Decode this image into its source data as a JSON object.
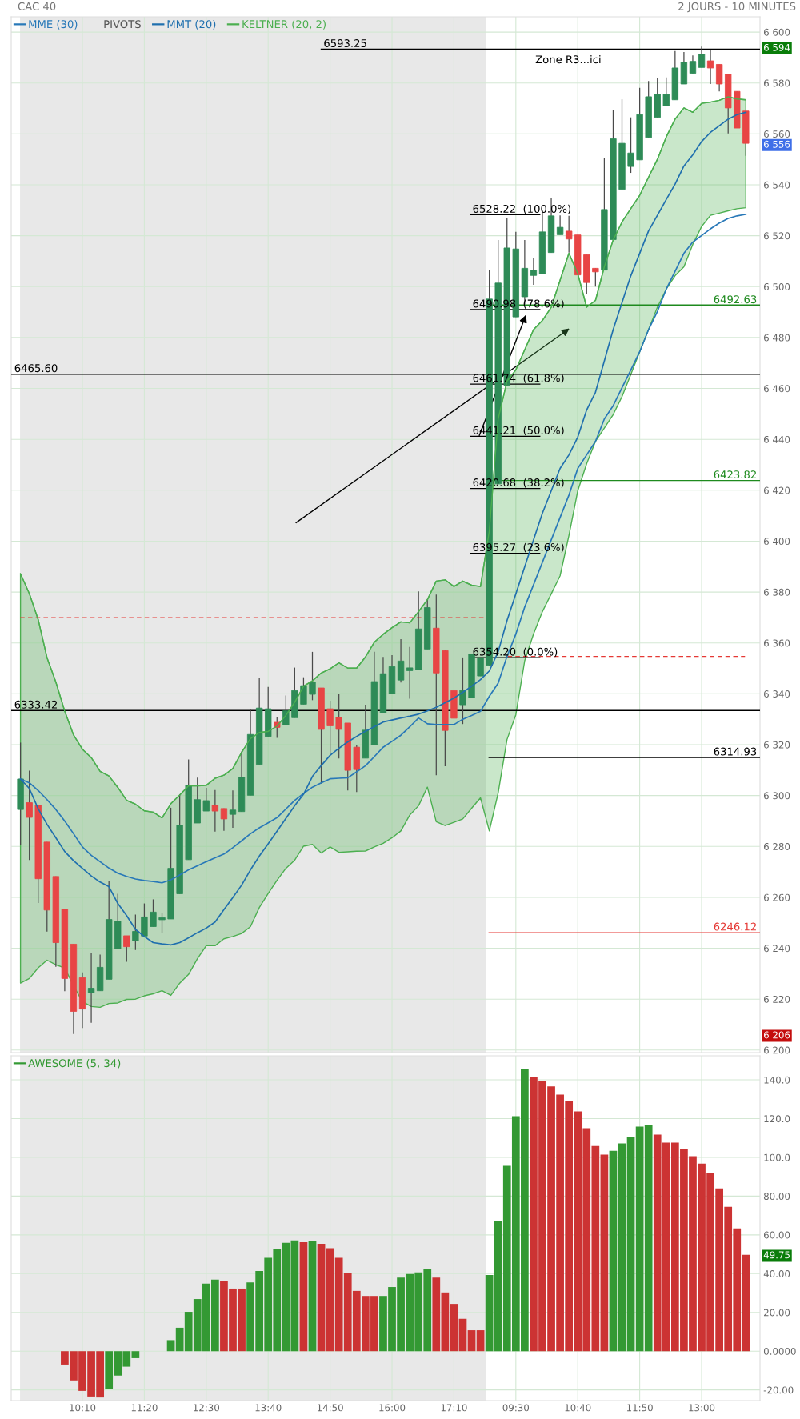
{
  "chart_data": [
    {
      "type": "candlestick",
      "title": "CAC 40",
      "subtitle": "2 JOURS - 10 MINUTES",
      "categories": [
        null,
        null,
        null,
        null,
        null,
        null,
        null,
        null,
        null,
        null,
        null,
        null,
        null,
        null,
        null,
        null,
        null,
        null,
        null,
        null,
        null,
        null,
        null,
        null,
        null,
        null,
        null,
        null,
        null,
        null,
        null,
        null,
        null,
        null,
        null,
        null,
        null,
        null,
        null,
        null,
        null,
        null,
        null,
        null,
        null,
        null,
        null,
        null,
        null,
        null,
        null,
        null,
        null,
        null,
        null,
        null,
        null,
        null,
        null,
        null,
        null,
        null,
        null,
        null,
        null,
        null,
        null,
        null,
        null,
        null,
        null,
        null,
        null,
        null,
        null,
        null,
        null,
        null,
        null,
        null,
        null,
        null,
        null
      ],
      "series": [
        {
          "type": "candlestick",
          "ohlc": [
            [
              6294.5,
              6320.8,
              6280.7,
              6306.5
            ],
            [
              6297.2,
              6309.8,
              6274.7,
              6291.4
            ],
            [
              6296.1,
              6296.1,
              6257.8,
              6267.3
            ],
            [
              6281.7,
              6281.7,
              6246.5,
              6255.0
            ],
            [
              6268.2,
              6268.2,
              6232.7,
              6242.2
            ],
            [
              6255.4,
              6255.4,
              6223.1,
              6228.1
            ],
            [
              6241.6,
              6241.6,
              6206.3,
              6215.2
            ],
            [
              6228.4,
              6230.5,
              6208.7,
              6216.1
            ],
            [
              6222.5,
              6238.3,
              6210.7,
              6224.3
            ],
            [
              6223.3,
              6237.5,
              6223.3,
              6232.5
            ],
            [
              6227.8,
              6266.3,
              6227.8,
              6251.3
            ],
            [
              6239.8,
              6261.4,
              6239.8,
              6250.7
            ],
            [
              6244.9,
              6244.9,
              6234.7,
              6240.6
            ],
            [
              6242.9,
              6253.2,
              6239.3,
              6246.6
            ],
            [
              6244.8,
              6257.6,
              6244.8,
              6252.3
            ],
            [
              6248.5,
              6259.2,
              6248.5,
              6254.2
            ],
            [
              6251.2,
              6253.9,
              6245.9,
              6252.0
            ],
            [
              6251.5,
              6295.2,
              6251.5,
              6271.4
            ],
            [
              6261.4,
              6300.4,
              6261.4,
              6288.4
            ],
            [
              6274.8,
              6314.2,
              6274.8,
              6304.0
            ],
            [
              6289.2,
              6307.0,
              6289.2,
              6298.4
            ],
            [
              6293.9,
              6303.0,
              6293.9,
              6298.0
            ],
            [
              6296.2,
              6302.2,
              6285.8,
              6293.9
            ],
            [
              6294.9,
              6294.9,
              6286.1,
              6290.8
            ],
            [
              6292.6,
              6302.0,
              6287.3,
              6294.3
            ],
            [
              6293.7,
              6317.3,
              6293.7,
              6307.2
            ],
            [
              6300.1,
              6333.9,
              6300.1,
              6324.0
            ],
            [
              6312.2,
              6346.4,
              6312.2,
              6334.4
            ],
            [
              6323.2,
              6342.7,
              6323.2,
              6334.1
            ],
            [
              6328.8,
              6331.0,
              6322.7,
              6326.8
            ],
            [
              6327.8,
              6339.3,
              6327.8,
              6333.3
            ],
            [
              6330.6,
              6350.3,
              6330.6,
              6341.3
            ],
            [
              6335.9,
              6346.5,
              6335.9,
              6343.2
            ],
            [
              6339.8,
              6356.5,
              6337.5,
              6344.5
            ],
            [
              6342.3,
              6342.3,
              6304.7,
              6326.0
            ],
            [
              6334.1,
              6337.3,
              6316.1,
              6327.4
            ],
            [
              6330.7,
              6340.1,
              6314.6,
              6326.0
            ],
            [
              6328.5,
              6328.5,
              6302.0,
              6309.9
            ],
            [
              6319.0,
              6320.0,
              6301.4,
              6310.2
            ],
            [
              6314.7,
              6335.7,
              6314.7,
              6325.7
            ],
            [
              6320.0,
              6356.5,
              6320.0,
              6344.8
            ],
            [
              6332.5,
              6354.5,
              6332.5,
              6347.9
            ],
            [
              6340.1,
              6355.2,
              6340.1,
              6350.7
            ],
            [
              6345.4,
              6361.5,
              6344.4,
              6352.9
            ],
            [
              6349.1,
              6358.4,
              6338.1,
              6350.2
            ],
            [
              6349.5,
              6380.3,
              6349.5,
              6365.5
            ],
            [
              6357.6,
              6377.2,
              6357.6,
              6373.9
            ],
            [
              6365.8,
              6379.0,
              6308.0,
              6348.2
            ],
            [
              6357.0,
              6357.0,
              6311.5,
              6325.6
            ],
            [
              6341.3,
              6341.3,
              6330.4,
              6330.4
            ],
            [
              6335.7,
              6354.3,
              6328.1,
              6341.3
            ],
            [
              6338.5,
              6355.6,
              6338.5,
              6355.6
            ],
            [
              6347.0,
              6354.2,
              6347.0,
              6354.2
            ],
            [
              6351.2,
              6506.7,
              6351.2,
              6495.1
            ],
            [
              6422.5,
              6518.3,
              6422.5,
              6501.4
            ],
            [
              6461.2,
              6526.8,
              6461.2,
              6515.2
            ],
            [
              6488.1,
              6521.5,
              6488.1,
              6514.8
            ],
            [
              6496.0,
              6518.3,
              6493.0,
              6507.2
            ],
            [
              6504.4,
              6511.3,
              6500.7,
              6506.5
            ],
            [
              6505.1,
              6530.1,
              6505.1,
              6521.5
            ],
            [
              6513.4,
              6534.9,
              6513.4,
              6527.8
            ],
            [
              6520.4,
              6528.0,
              6520.4,
              6523.3
            ],
            [
              6521.8,
              6527.8,
              6513.4,
              6518.7
            ],
            [
              6520.3,
              6520.3,
              6504.6,
              6504.6
            ],
            [
              6512.5,
              6512.5,
              6497.1,
              6501.6
            ],
            [
              6507.2,
              6507.2,
              6500.0,
              6505.8
            ],
            [
              6506.5,
              6550.4,
              6506.5,
              6530.3
            ],
            [
              6518.5,
              6569.4,
              6518.5,
              6558.1
            ],
            [
              6538.2,
              6573.6,
              6538.2,
              6556.3
            ],
            [
              6547.2,
              6566.5,
              6544.7,
              6552.5
            ],
            [
              6549.8,
              6578.1,
              6549.8,
              6567.6
            ],
            [
              6558.6,
              6580.8,
              6558.6,
              6574.6
            ],
            [
              6566.5,
              6582.0,
              6566.5,
              6575.5
            ],
            [
              6571.1,
              6582.2,
              6571.1,
              6575.5
            ],
            [
              6573.4,
              6592.6,
              6573.4,
              6585.9
            ],
            [
              6579.6,
              6592.2,
              6579.6,
              6588.2
            ],
            [
              6583.8,
              6590.8,
              6583.8,
              6588.5
            ],
            [
              6586.1,
              6594.3,
              6586.1,
              6591.3
            ],
            [
              6588.7,
              6592.9,
              6579.6,
              6585.9
            ],
            [
              6587.3,
              6587.3,
              6576.7,
              6579.6
            ],
            [
              6583.4,
              6583.4,
              6560.2,
              6570.2
            ],
            [
              6576.7,
              6576.7,
              6562.3,
              6562.3
            ],
            [
              6569.0,
              6569.0,
              6551.4,
              6556.3
            ]
          ],
          "colors": [
            "#2e8b57",
            "#e84545",
            "#e84545",
            "#e84545",
            "#e84545",
            "#e84545",
            "#e84545",
            "#e84545",
            "#2e8b57",
            "#2e8b57",
            "#2e8b57",
            "#2e8b57",
            "#e84545",
            "#2e8b57",
            "#2e8b57",
            "#2e8b57",
            "#2e8b57",
            "#2e8b57",
            "#2e8b57",
            "#2e8b57",
            "#2e8b57",
            "#2e8b57",
            "#e84545",
            "#e84545",
            "#2e8b57",
            "#2e8b57",
            "#2e8b57",
            "#2e8b57",
            "#2e8b57",
            "#e84545",
            "#2e8b57",
            "#2e8b57",
            "#2e8b57",
            "#2e8b57",
            "#e84545",
            "#e84545",
            "#e84545",
            "#e84545",
            "#e84545",
            "#2e8b57",
            "#2e8b57",
            "#2e8b57",
            "#2e8b57",
            "#2e8b57",
            "#2e8b57",
            "#2e8b57",
            "#2e8b57",
            "#e84545",
            "#e84545",
            "#e84545",
            "#2e8b57",
            "#2e8b57",
            "#2e8b57",
            "#2e8b57",
            "#2e8b57",
            "#2e8b57",
            "#2e8b57",
            "#2e8b57",
            "#2e8b57",
            "#2e8b57",
            "#2e8b57",
            "#2e8b57",
            "#e84545",
            "#e84545",
            "#e84545",
            "#e84545",
            "#2e8b57",
            "#2e8b57",
            "#2e8b57",
            "#2e8b57",
            "#2e8b57",
            "#2e8b57",
            "#2e8b57",
            "#2e8b57",
            "#2e8b57",
            "#2e8b57",
            "#2e8b57",
            "#2e8b57",
            "#e84545",
            "#e84545",
            "#e84545",
            "#e84545",
            "#e84545"
          ]
        },
        {
          "name": "MME (30)",
          "type": "line",
          "color": "#2878b8",
          "values": [
            6306.5,
            6305.0,
            6302.0,
            6298.4,
            6294.5,
            6290.0,
            6285.0,
            6279.8,
            6276.5,
            6274.0,
            6271.5,
            6269.5,
            6268.2,
            6267.2,
            6266.6,
            6266.2,
            6265.7,
            6266.9,
            6268.8,
            6270.8,
            6272.4,
            6274.0,
            6275.5,
            6277.0,
            6279.5,
            6282.2,
            6285.0,
            6287.3,
            6289.3,
            6291.3,
            6294.7,
            6298.1,
            6300.8,
            6303.3,
            6305.0,
            6306.6,
            6306.8,
            6307.0,
            6309.3,
            6311.7,
            6315.3,
            6319.0,
            6321.3,
            6323.7,
            6327.0,
            6330.5,
            6328.2,
            6327.9,
            6327.9,
            6327.9,
            6330.0,
            6331.5,
            6333.1,
            6339.0,
            6344.2,
            6354.7,
            6363.5,
            6374.1,
            6382.9,
            6391.7,
            6400.5,
            6409.3,
            6418.1,
            6428.6,
            6433.9,
            6439.2,
            6448.0,
            6453.2,
            6460.3,
            6467.3,
            6474.4,
            6483.1,
            6490.2,
            6499.0,
            6506.0,
            6513.1,
            6517.5,
            6520.1,
            6522.7,
            6525.0,
            6526.8,
            6527.8,
            6528.4
          ]
        },
        {
          "name": "MMT (20)",
          "type": "line",
          "color": "#1f6fae",
          "values": [
            6306.5,
            6302.8,
            6294.8,
            6288.7,
            6283.4,
            6278.0,
            6274.4,
            6271.4,
            6268.4,
            6266.0,
            6264.2,
            6257.6,
            6252.8,
            6247.4,
            6244.6,
            6242.2,
            6241.7,
            6241.3,
            6242.2,
            6244.1,
            6246.1,
            6247.9,
            6250.3,
            6255.2,
            6259.9,
            6264.8,
            6270.8,
            6276.2,
            6281.0,
            6286.0,
            6291.0,
            6296.0,
            6300.5,
            6307.5,
            6311.8,
            6315.8,
            6318.6,
            6321.1,
            6323.2,
            6325.3,
            6327.1,
            6328.9,
            6329.7,
            6330.5,
            6331.2,
            6332.0,
            6333.3,
            6334.7,
            6336.5,
            6338.3,
            6340.6,
            6343.0,
            6345.6,
            6349.0,
            6356.5,
            6368.8,
            6379.3,
            6389.9,
            6400.5,
            6411.0,
            6419.8,
            6428.6,
            6433.9,
            6440.9,
            6451.5,
            6458.5,
            6470.8,
            6483.1,
            6493.7,
            6504.3,
            6513.1,
            6521.9,
            6528.0,
            6534.2,
            6540.3,
            6547.4,
            6551.8,
            6557.0,
            6560.6,
            6563.2,
            6565.8,
            6567.6,
            6568.5
          ]
        },
        {
          "name": "KELTNER (20, 2)",
          "type": "line",
          "color": "#4caf50",
          "values": [
            6387.2,
            6379.4,
            6369.2,
            6354.2,
            6344.6,
            6333.2,
            6323.8,
            6318.2,
            6314.9,
            6309.5,
            6307.7,
            6303.2,
            6298.1,
            6296.6,
            6294.0,
            6293.5,
            6291.2,
            6296.8,
            6300.2,
            6303.8,
            6303.8,
            6304.0,
            6306.8,
            6308.0,
            6310.6,
            6317.0,
            6322.4,
            6324.8,
            6325.2,
            6327.3,
            6331.5,
            6336.7,
            6343.0,
            6345.1,
            6348.2,
            6349.8,
            6352.2,
            6350.1,
            6350.1,
            6354.5,
            6360.3,
            6363.4,
            6366.0,
            6368.3,
            6367.9,
            6372.3,
            6377.0,
            6384.3,
            6384.8,
            6382.2,
            6384.3,
            6382.7,
            6382.2,
            6404.0,
            6448.0,
            6462.9,
            6467.3,
            6475.2,
            6483.1,
            6486.7,
            6491.9,
            6502.5,
            6513.1,
            6505.1,
            6491.9,
            6494.6,
            6507.8,
            6518.3,
            6525.4,
            6530.7,
            6535.9,
            6543.0,
            6550.0,
            6558.8,
            6565.8,
            6570.2,
            6568.5,
            6572.0,
            6572.5,
            6573.2,
            6574.6,
            6573.7,
            6573.4
          ],
          "upper": [
            6387.2,
            6379.4,
            6369.2,
            6354.2,
            6344.6,
            6333.2,
            6323.8,
            6318.2,
            6314.9,
            6309.5,
            6307.7,
            6303.2,
            6298.1,
            6296.6,
            6294.0,
            6293.5,
            6291.2,
            6296.8,
            6300.2,
            6303.8,
            6303.8,
            6304.0,
            6306.8,
            6308.0,
            6310.6,
            6317.0,
            6322.4,
            6324.8,
            6325.2,
            6327.3,
            6331.5,
            6336.7,
            6343.0,
            6345.1,
            6348.2,
            6349.8,
            6352.2,
            6350.1,
            6350.1,
            6354.5,
            6360.3,
            6363.4,
            6366.0,
            6368.3,
            6367.9,
            6372.3,
            6377.0,
            6384.3,
            6384.8,
            6382.2,
            6384.3,
            6382.7,
            6382.2,
            6404.0,
            6448.0,
            6462.9,
            6467.3,
            6475.2,
            6483.1,
            6486.7,
            6491.9,
            6502.5,
            6513.1,
            6505.1,
            6491.9,
            6494.6,
            6507.8,
            6518.3,
            6525.4,
            6530.7,
            6535.9,
            6543.0,
            6550.0,
            6558.8,
            6565.8,
            6570.2,
            6568.5,
            6572.0,
            6572.5,
            6573.2,
            6574.6,
            6573.7,
            6573.4
          ],
          "lower": [
            6226.3,
            6228.1,
            6232.3,
            6235.3,
            6233.5,
            6232.3,
            6225.2,
            6219.1,
            6217.1,
            6216.8,
            6218.3,
            6218.5,
            6219.9,
            6220.0,
            6221.3,
            6222.1,
            6223.3,
            6221.5,
            6226.3,
            6229.7,
            6235.9,
            6241.0,
            6241.0,
            6243.7,
            6244.6,
            6245.8,
            6248.5,
            6256.0,
            6261.5,
            6266.7,
            6271.4,
            6274.6,
            6280.1,
            6280.8,
            6277.4,
            6279.8,
            6277.7,
            6277.9,
            6278.1,
            6278.2,
            6279.8,
            6281.2,
            6283.4,
            6286.1,
            6292.3,
            6296.0,
            6303.3,
            6289.7,
            6288.2,
            6289.5,
            6290.8,
            6295.0,
            6299.1,
            6286.1,
            6301.0,
            6322.0,
            6331.8,
            6353.0,
            6363.5,
            6372.3,
            6379.3,
            6386.4,
            6402.2,
            6419.8,
            6430.4,
            6439.2,
            6444.4,
            6449.7,
            6456.8,
            6465.5,
            6474.4,
            6483.1,
            6491.9,
            6499.0,
            6504.3,
            6507.8,
            6516.6,
            6523.6,
            6528.0,
            6528.9,
            6529.8,
            6530.6,
            6531.0
          ]
        }
      ],
      "ylim": [
        6199,
        6606
      ],
      "yticks": [
        {
          "value": 6200,
          "label": "6 200"
        },
        {
          "value": 6220,
          "label": "6 220"
        },
        {
          "value": 6240,
          "label": "6 240"
        },
        {
          "value": 6260,
          "label": "6 260"
        },
        {
          "value": 6280,
          "label": "6 280"
        },
        {
          "value": 6300,
          "label": "6 300"
        },
        {
          "value": 6320,
          "label": "6 320"
        },
        {
          "value": 6340,
          "label": "6 340"
        },
        {
          "value": 6360,
          "label": "6 360"
        },
        {
          "value": 6380,
          "label": "6 380"
        },
        {
          "value": 6400,
          "label": "6 400"
        },
        {
          "value": 6420,
          "label": "6 420"
        },
        {
          "value": 6440,
          "label": "6 440"
        },
        {
          "value": 6460,
          "label": "6 460"
        },
        {
          "value": 6480,
          "label": "6 480"
        },
        {
          "value": 6500,
          "label": "6 500"
        },
        {
          "value": 6520,
          "label": "6 520"
        },
        {
          "value": 6540,
          "label": "6 540"
        },
        {
          "value": 6560,
          "label": "6 560"
        },
        {
          "value": 6580,
          "label": "6 580"
        },
        {
          "value": 6600,
          "label": "6 600"
        },
        {
          "value": 6594,
          "label": "6 594"
        },
        {
          "value": 6556,
          "label": "6 556"
        },
        {
          "value": 6206,
          "label": "6 206"
        }
      ],
      "grid": true,
      "legend": "top left",
      "tick_labels": "y",
      "ref_lines": [
        {
          "axis": "y",
          "value": 6593.25,
          "label": "6593.25",
          "color": "#000000"
        },
        {
          "axis": "y",
          "value": 6465.6,
          "label": "6465.60",
          "color": "#000000"
        },
        {
          "axis": "y",
          "value": 6333.42,
          "label": "6333.42",
          "color": "#000000"
        },
        {
          "axis": "y",
          "value": 6492.63,
          "label": "6492.63",
          "color": "#1e8a1e"
        },
        {
          "axis": "y",
          "value": 6423.82,
          "label": "6423.82",
          "color": "#1e8a1e"
        },
        {
          "axis": "y",
          "value": 6314.93,
          "label": "6314.93",
          "color": "#000000"
        },
        {
          "axis": "y",
          "value": 6246.12,
          "label": "6246.12",
          "color": "#e53935"
        },
        {
          "axis": "y",
          "value": 6369.9,
          "color": "#e53935",
          "line_style": "dashed"
        },
        {
          "axis": "y",
          "value": 6354.7,
          "color": "#e53935",
          "line_style": "dashed"
        },
        {
          "axis": "y",
          "value": 6528.22,
          "label": "6528.22  (100.0%)",
          "color": "#000000"
        },
        {
          "axis": "y",
          "value": 6490.98,
          "label": "6490.98  (78.6%)",
          "color": "#000000"
        },
        {
          "axis": "y",
          "value": 6461.74,
          "label": "6461.74  (61.8%)",
          "color": "#000000"
        },
        {
          "axis": "y",
          "value": 6441.21,
          "label": "6441.21  (50.0%)",
          "color": "#000000"
        },
        {
          "axis": "y",
          "value": 6420.68,
          "label": "6420.68  (38.2%)",
          "color": "#000000"
        },
        {
          "axis": "y",
          "value": 6395.27,
          "label": "6395.27  (23.6%)",
          "color": "#000000"
        },
        {
          "axis": "y",
          "value": 6354.2,
          "label": "6354.20  (0.0%)",
          "color": "#000000"
        }
      ],
      "annotations": [
        "PIVOTS",
        "Zone R3...ici"
      ]
    },
    {
      "type": "bar",
      "categories": [
        null,
        null,
        null,
        null,
        null,
        null,
        null,
        "10:10",
        null,
        null,
        null,
        null,
        null,
        null,
        "11:20",
        null,
        null,
        null,
        null,
        null,
        null,
        "12:30",
        null,
        null,
        null,
        null,
        null,
        null,
        "13:40",
        null,
        null,
        null,
        null,
        null,
        null,
        "14:50",
        null,
        null,
        null,
        null,
        null,
        null,
        "16:00",
        null,
        null,
        null,
        null,
        null,
        null,
        "17:10",
        null,
        null,
        null,
        null,
        null,
        null,
        "09:30",
        null,
        null,
        null,
        null,
        null,
        null,
        "10:40",
        null,
        null,
        null,
        null,
        null,
        null,
        "11:50",
        null,
        null,
        null,
        null,
        null,
        null,
        "13:00",
        null,
        null,
        null,
        null,
        null
      ],
      "series": [
        {
          "name": "AWESOME (5, 34)",
          "color": "#339933",
          "values": [
            null,
            null,
            null,
            null,
            null,
            -6.9,
            -15.1,
            -20.5,
            -23.4,
            -23.9,
            -19.7,
            -12.6,
            -8.0,
            -3.6,
            null,
            null,
            null,
            5.7,
            12.1,
            20.3,
            26.9,
            34.9,
            36.9,
            36.4,
            32.3,
            32.3,
            35.5,
            41.4,
            48.2,
            52.6,
            55.9,
            57.2,
            56.2,
            56.7,
            55.4,
            53.1,
            48.2,
            40.1,
            31.1,
            28.5,
            28.5,
            28.5,
            33.1,
            38.0,
            39.8,
            40.6,
            42.3,
            38.0,
            30.3,
            24.4,
            16.7,
            10.8,
            10.8,
            39.3,
            67.4,
            95.6,
            121.2,
            145.7,
            141.5,
            139.4,
            136.6,
            132.4,
            129.1,
            123.7,
            115.0,
            105.9,
            101.4,
            103.4,
            107.2,
            110.5,
            115.9,
            116.7,
            111.7,
            107.6,
            107.6,
            104.3,
            100.6,
            96.8,
            91.9,
            84.0,
            74.5,
            63.3,
            49.75
          ],
          "colors": [
            null,
            null,
            null,
            null,
            null,
            "#cc3333",
            "#cc3333",
            "#cc3333",
            "#cc3333",
            "#cc3333",
            "#339933",
            "#339933",
            "#339933",
            "#339933",
            null,
            null,
            null,
            "#339933",
            "#339933",
            "#339933",
            "#339933",
            "#339933",
            "#339933",
            "#cc3333",
            "#cc3333",
            "#cc3333",
            "#339933",
            "#339933",
            "#339933",
            "#339933",
            "#339933",
            "#339933",
            "#cc3333",
            "#339933",
            "#cc3333",
            "#cc3333",
            "#cc3333",
            "#cc3333",
            "#cc3333",
            "#cc3333",
            "#cc3333",
            "#339933",
            "#339933",
            "#339933",
            "#339933",
            "#339933",
            "#339933",
            "#cc3333",
            "#cc3333",
            "#cc3333",
            "#cc3333",
            "#cc3333",
            "#cc3333",
            "#339933",
            "#339933",
            "#339933",
            "#339933",
            "#339933",
            "#cc3333",
            "#cc3333",
            "#cc3333",
            "#cc3333",
            "#cc3333",
            "#cc3333",
            "#cc3333",
            "#cc3333",
            "#cc3333",
            "#339933",
            "#339933",
            "#339933",
            "#339933",
            "#339933",
            "#cc3333",
            "#cc3333",
            "#cc3333",
            "#cc3333",
            "#cc3333",
            "#cc3333",
            "#cc3333",
            "#cc3333",
            "#cc3333",
            "#cc3333",
            "#cc3333"
          ]
        }
      ],
      "ylim": [
        -25.5,
        152.4
      ],
      "yticks": [
        {
          "value": -20,
          "label": "-20.00"
        },
        {
          "value": 0,
          "label": "0.0000"
        },
        {
          "value": 20,
          "label": "20.00"
        },
        {
          "value": 40,
          "label": "40.00"
        },
        {
          "value": 60,
          "label": "60.00"
        },
        {
          "value": 80,
          "label": "80.00"
        },
        {
          "value": 100,
          "label": "100.0"
        },
        {
          "value": 120,
          "label": "120.0"
        },
        {
          "value": 140,
          "label": "140.0"
        },
        {
          "value": 49.75,
          "label": "49.75"
        }
      ],
      "grid": true,
      "legend": "top left"
    }
  ]
}
